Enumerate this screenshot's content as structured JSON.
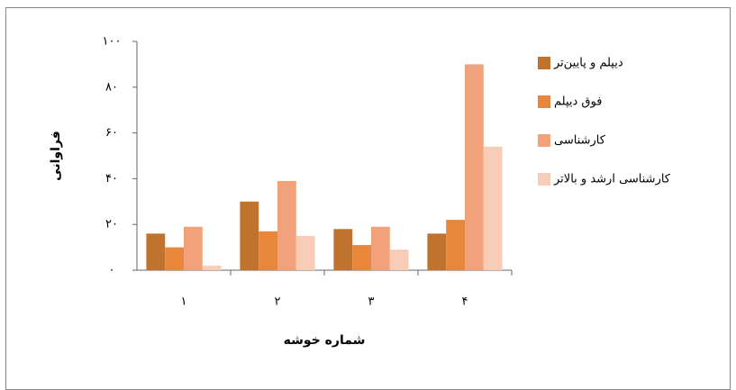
{
  "chart_data": {
    "type": "bar",
    "x_label": "شماره خوشه",
    "y_label": "فراوانی",
    "categories": [
      "۱",
      "۲",
      "۳",
      "۴"
    ],
    "series": [
      {
        "name": "دیپلم و پایین‌تر",
        "color": "#c0722f",
        "values": [
          16,
          30,
          18,
          16
        ]
      },
      {
        "name": "فوق دیپلم",
        "color": "#e8873c",
        "values": [
          10,
          17,
          11,
          22
        ]
      },
      {
        "name": "کارشناسی",
        "color": "#f2a27a",
        "values": [
          19,
          39,
          19,
          90
        ]
      },
      {
        "name": "کارشناسی ارشد و بالاتر",
        "color": "#f8cdb8",
        "values": [
          2,
          15,
          9,
          54
        ]
      }
    ],
    "ylim": [
      0,
      100
    ],
    "yticks": [
      {
        "value": 0,
        "label": "۰"
      },
      {
        "value": 20,
        "label": "۲۰"
      },
      {
        "value": 40,
        "label": "۴۰"
      },
      {
        "value": 60,
        "label": "۶۰"
      },
      {
        "value": 80,
        "label": "۸۰"
      },
      {
        "value": 100,
        "label": "۱۰۰"
      }
    ],
    "legend": "right"
  }
}
